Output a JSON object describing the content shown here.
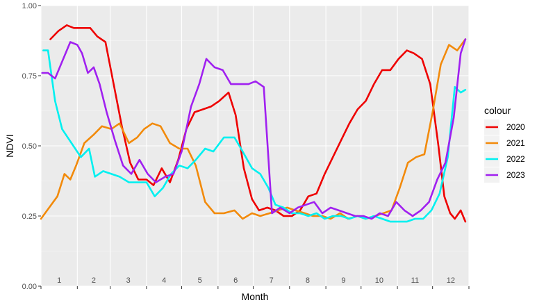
{
  "chart_data": {
    "type": "line",
    "xlabel": "Month",
    "ylabel": "NDVI",
    "ylim": [
      0,
      1
    ],
    "xlim": [
      0,
      365
    ],
    "y_ticks": [
      "0.00",
      "0.25",
      "0.50",
      "0.75",
      "1.00"
    ],
    "y_tick_values": [
      0,
      0.25,
      0.5,
      0.75,
      1.0
    ],
    "month_labels": [
      "1",
      "2",
      "3",
      "4",
      "5",
      "6",
      "7",
      "8",
      "9",
      "10",
      "11",
      "12"
    ],
    "grid": true,
    "legend": {
      "title": "colour",
      "placement": "right"
    },
    "series": [
      {
        "name": "2020",
        "color": "#ee0000",
        "x": [
          8,
          15,
          22,
          28,
          35,
          42,
          48,
          55,
          62,
          69,
          76,
          83,
          90,
          96,
          103,
          110,
          117,
          124,
          131,
          138,
          145,
          152,
          160,
          166,
          173,
          180,
          186,
          193,
          200,
          207,
          214,
          221,
          228,
          235,
          242,
          249,
          256,
          263,
          270,
          277,
          284,
          291,
          298,
          305,
          312,
          318,
          325,
          332,
          339,
          344,
          349,
          353,
          358,
          362
        ],
        "y": [
          0.88,
          0.91,
          0.93,
          0.92,
          0.92,
          0.92,
          0.89,
          0.87,
          0.72,
          0.57,
          0.44,
          0.38,
          0.38,
          0.36,
          0.42,
          0.37,
          0.45,
          0.56,
          0.62,
          0.63,
          0.64,
          0.66,
          0.69,
          0.61,
          0.42,
          0.31,
          0.27,
          0.28,
          0.27,
          0.25,
          0.25,
          0.27,
          0.32,
          0.33,
          0.4,
          0.46,
          0.52,
          0.58,
          0.63,
          0.66,
          0.72,
          0.77,
          0.77,
          0.81,
          0.84,
          0.83,
          0.81,
          0.72,
          0.5,
          0.32,
          0.26,
          0.24,
          0.27,
          0.23
        ]
      },
      {
        "name": "2021",
        "color": "#f28a0a",
        "x": [
          0,
          7,
          14,
          20,
          25,
          30,
          37,
          45,
          52,
          60,
          67,
          75,
          82,
          88,
          95,
          102,
          110,
          118,
          125,
          132,
          140,
          148,
          156,
          165,
          172,
          180,
          187,
          195,
          202,
          210,
          217,
          225,
          232,
          240,
          247,
          255,
          262,
          270,
          277,
          285,
          292,
          299,
          306,
          313,
          320,
          327,
          334,
          341,
          348,
          355,
          362
        ],
        "y": [
          0.24,
          0.28,
          0.32,
          0.4,
          0.38,
          0.43,
          0.51,
          0.54,
          0.57,
          0.56,
          0.58,
          0.51,
          0.53,
          0.56,
          0.58,
          0.57,
          0.51,
          0.49,
          0.49,
          0.43,
          0.3,
          0.26,
          0.26,
          0.27,
          0.24,
          0.26,
          0.25,
          0.26,
          0.27,
          0.28,
          0.27,
          0.26,
          0.25,
          0.25,
          0.24,
          0.26,
          0.24,
          0.25,
          0.24,
          0.25,
          0.26,
          0.27,
          0.35,
          0.44,
          0.46,
          0.47,
          0.62,
          0.79,
          0.86,
          0.84,
          0.88
        ]
      },
      {
        "name": "2022",
        "color": "#00f0f0",
        "x": [
          2,
          6,
          12,
          18,
          26,
          34,
          41,
          46,
          53,
          60,
          67,
          75,
          83,
          90,
          97,
          104,
          111,
          118,
          125,
          132,
          140,
          147,
          156,
          165,
          172,
          180,
          187,
          194,
          200,
          207,
          214,
          221,
          228,
          235,
          242,
          249,
          256,
          263,
          270,
          277,
          284,
          291,
          298,
          305,
          312,
          319,
          326,
          333,
          340,
          347,
          353,
          358,
          362
        ],
        "y": [
          0.84,
          0.84,
          0.66,
          0.56,
          0.51,
          0.46,
          0.49,
          0.39,
          0.41,
          0.4,
          0.39,
          0.37,
          0.37,
          0.37,
          0.32,
          0.35,
          0.4,
          0.43,
          0.42,
          0.45,
          0.49,
          0.48,
          0.53,
          0.53,
          0.48,
          0.42,
          0.4,
          0.35,
          0.29,
          0.28,
          0.26,
          0.26,
          0.25,
          0.26,
          0.24,
          0.25,
          0.25,
          0.24,
          0.25,
          0.24,
          0.25,
          0.24,
          0.23,
          0.23,
          0.23,
          0.24,
          0.24,
          0.27,
          0.33,
          0.46,
          0.71,
          0.69,
          0.7
        ]
      },
      {
        "name": "2023",
        "color": "#a020f0",
        "x": [
          1,
          6,
          12,
          18,
          25,
          31,
          35,
          40,
          45,
          50,
          56,
          63,
          70,
          77,
          84,
          91,
          98,
          106,
          113,
          120,
          128,
          135,
          141,
          148,
          155,
          162,
          170,
          177,
          183,
          190,
          197,
          204,
          212,
          219,
          226,
          233,
          240,
          247,
          254,
          261,
          268,
          275,
          282,
          289,
          296,
          303,
          310,
          317,
          324,
          331,
          338,
          345,
          352,
          358,
          362
        ],
        "y": [
          0.76,
          0.76,
          0.74,
          0.8,
          0.87,
          0.86,
          0.83,
          0.76,
          0.78,
          0.72,
          0.62,
          0.52,
          0.43,
          0.4,
          0.45,
          0.4,
          0.37,
          0.39,
          0.4,
          0.48,
          0.64,
          0.72,
          0.81,
          0.78,
          0.77,
          0.72,
          0.72,
          0.72,
          0.73,
          0.71,
          0.26,
          0.28,
          0.26,
          0.28,
          0.29,
          0.3,
          0.26,
          0.28,
          0.27,
          0.26,
          0.25,
          0.25,
          0.24,
          0.26,
          0.25,
          0.3,
          0.27,
          0.25,
          0.27,
          0.3,
          0.38,
          0.44,
          0.6,
          0.83,
          0.88
        ]
      }
    ]
  }
}
